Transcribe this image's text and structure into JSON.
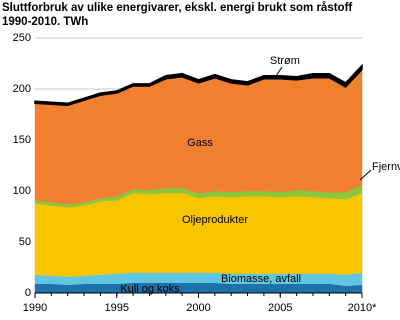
{
  "chart_data": {
    "type": "stacked_area",
    "title": "Sluttforbruk av ulike energivarer, ekskl. energi brukt som råstoff",
    "subtitle": "1990-2010. TWh",
    "x": [
      1990,
      1991,
      1992,
      1993,
      1994,
      1995,
      1996,
      1997,
      1998,
      1999,
      2000,
      2001,
      2002,
      2003,
      2004,
      2005,
      2006,
      2007,
      2008,
      2009,
      2010
    ],
    "xlim": [
      1990,
      2010
    ],
    "xticks": [
      1990,
      1995,
      2000,
      2005,
      {
        "value": 2010,
        "label": "2010*"
      }
    ],
    "ylim": [
      0,
      250
    ],
    "yticks": [
      0,
      50,
      100,
      150,
      200,
      250
    ],
    "grid": true,
    "series": [
      {
        "name": "Kull og koks",
        "color": "#1f6fa8",
        "values": [
          9,
          9,
          8,
          9,
          9,
          9,
          10,
          10,
          10,
          10,
          10,
          10,
          9,
          9,
          9,
          9,
          9,
          9,
          9,
          7,
          8
        ]
      },
      {
        "name": "Biomasse, avfall",
        "color": "#62c6e2",
        "values": [
          9,
          8,
          8,
          8,
          9,
          10,
          10,
          10,
          10,
          10,
          10,
          10,
          10,
          10,
          10,
          10,
          10,
          10,
          10,
          11,
          12
        ]
      },
      {
        "name": "Oljeprodukter",
        "color": "#f7c600",
        "values": [
          70,
          69,
          68,
          69,
          72,
          72,
          78,
          77,
          78,
          78,
          73,
          75,
          75,
          76,
          76,
          75,
          76,
          75,
          74,
          74,
          78
        ]
      },
      {
        "name": "Gass",
        "color": "#8cc63f",
        "values": [
          3,
          3,
          3,
          3,
          3,
          4,
          4,
          4,
          5,
          5,
          5,
          5,
          5,
          5,
          5,
          5,
          6,
          6,
          6,
          7,
          8
        ]
      },
      {
        "name": "Strøm",
        "color": "#f08030",
        "values": [
          95,
          96,
          97,
          100,
          101,
          101,
          101,
          102,
          107,
          109,
          108,
          111,
          107,
          104,
          110,
          111,
          108,
          111,
          112,
          103,
          113
        ]
      },
      {
        "name": "Fjernvarme",
        "color": "#000000",
        "values": [
          2,
          2,
          2,
          2,
          2,
          2,
          2,
          2,
          3,
          3,
          3,
          3,
          3,
          3,
          3,
          3,
          3,
          4,
          4,
          4,
          4
        ]
      }
    ]
  }
}
